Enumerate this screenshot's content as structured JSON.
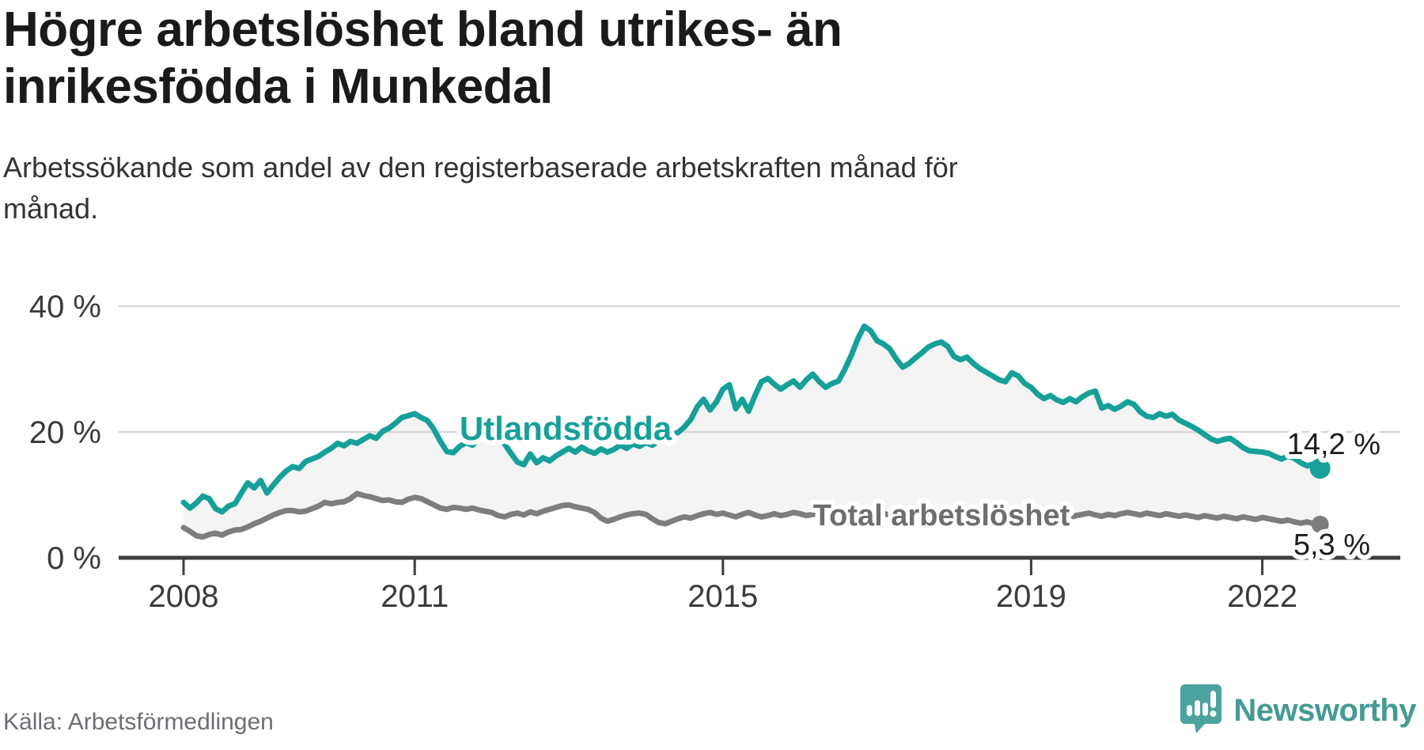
{
  "header": {
    "title": "Högre arbetslöshet bland utrikes- än\ninrikesfödda i Munkedal",
    "subtitle": "Arbetssökande som andel av den registerbaserade arbetskraften månad för\nmånad."
  },
  "footer": {
    "source": "Källa: Arbetsförmedlingen",
    "brand": "Newsworthy",
    "logo_icon": "bar-chart-speech-bubble-icon"
  },
  "colors": {
    "accent_teal": "#16a099",
    "gray_line": "#7d7d7d",
    "gray_label": "#6e6e6e",
    "band_fill": "#f4f4f4",
    "gridline": "#d8d8d8",
    "axis": "#3d3d3d",
    "axis_text": "#3b3b3b",
    "value_text": "#1d1d1d",
    "brand_teal": "#4aa39e"
  },
  "chart_data": {
    "type": "line",
    "title": "Arbetssökande som andel av den registerbaserade arbetskraften månad för månad",
    "frequency": "monthly",
    "x_start": "2008-01",
    "x_end": "2022-10",
    "x_tick_years": [
      2008,
      2011,
      2015,
      2019,
      2022
    ],
    "y_ticks": [
      {
        "value": 0,
        "label": "0 %"
      },
      {
        "value": 20,
        "label": "20 %"
      },
      {
        "value": 40,
        "label": "40 %"
      }
    ],
    "ylim": [
      0,
      42
    ],
    "grid": "horizontal",
    "fill_between_series": true,
    "legend_position": "inline-labels",
    "series": [
      {
        "name": "Utlandsfödda",
        "color": "#16a099",
        "end_label": "14,2 %",
        "end_value": 14.2,
        "values": [
          8.8,
          7.9,
          8.7,
          9.8,
          9.4,
          7.8,
          7.3,
          8.2,
          8.6,
          10.3,
          11.9,
          11.1,
          12.3,
          10.3,
          11.6,
          12.8,
          13.8,
          14.5,
          14.2,
          15.3,
          15.7,
          16.1,
          16.8,
          17.4,
          18.2,
          17.8,
          18.5,
          18.2,
          18.8,
          19.4,
          19.0,
          20.1,
          20.6,
          21.4,
          22.3,
          22.6,
          22.9,
          22.3,
          21.8,
          20.4,
          18.5,
          16.9,
          16.7,
          17.7,
          18.3,
          17.9,
          19.0,
          19.6,
          19.9,
          19.3,
          18.1,
          16.6,
          15.2,
          14.8,
          16.5,
          15.1,
          15.9,
          15.4,
          16.2,
          16.8,
          17.4,
          16.8,
          17.6,
          17.0,
          16.6,
          17.3,
          16.8,
          17.2,
          17.9,
          17.4,
          18.1,
          17.7,
          18.3,
          17.9,
          18.6,
          19.2,
          19.7,
          19.9,
          20.8,
          22.0,
          24.0,
          25.2,
          23.5,
          24.8,
          26.8,
          27.5,
          23.7,
          25.2,
          23.3,
          25.8,
          28.0,
          28.5,
          27.6,
          26.8,
          27.5,
          28.1,
          27.1,
          28.3,
          29.2,
          28.0,
          27.1,
          27.7,
          28.1,
          30.0,
          32.2,
          34.8,
          36.8,
          36.1,
          34.5,
          34.0,
          33.2,
          31.6,
          30.3,
          30.9,
          31.8,
          32.6,
          33.5,
          34.0,
          34.3,
          33.6,
          32.0,
          31.5,
          31.9,
          30.9,
          30.1,
          29.5,
          28.9,
          28.3,
          28.0,
          29.4,
          28.9,
          27.7,
          27.1,
          26.0,
          25.3,
          25.8,
          25.1,
          24.7,
          25.3,
          24.8,
          25.6,
          26.2,
          26.5,
          23.8,
          24.2,
          23.6,
          24.1,
          24.8,
          24.4,
          23.2,
          22.5,
          22.3,
          22.9,
          22.5,
          22.8,
          21.9,
          21.4,
          20.9,
          20.3,
          19.6,
          18.9,
          18.5,
          18.8,
          19.0,
          18.3,
          17.5,
          17.0,
          16.9,
          16.8,
          16.6,
          16.1,
          15.7,
          16.2,
          15.8,
          15.1,
          14.6,
          14.9,
          14.2
        ]
      },
      {
        "name": "Total arbetslöshet",
        "color": "#7d7d7d",
        "end_label": "5,3 %",
        "end_value": 5.3,
        "values": [
          4.8,
          4.2,
          3.5,
          3.3,
          3.7,
          3.9,
          3.6,
          4.1,
          4.4,
          4.5,
          4.9,
          5.4,
          5.8,
          6.3,
          6.8,
          7.2,
          7.5,
          7.5,
          7.3,
          7.4,
          7.8,
          8.2,
          8.8,
          8.6,
          8.8,
          8.9,
          9.4,
          10.2,
          9.9,
          9.7,
          9.4,
          9.1,
          9.2,
          8.9,
          8.8,
          9.3,
          9.6,
          9.4,
          8.9,
          8.4,
          7.9,
          7.7,
          8.0,
          7.9,
          7.7,
          7.9,
          7.6,
          7.4,
          7.2,
          6.7,
          6.5,
          6.9,
          7.1,
          6.8,
          7.3,
          7.0,
          7.4,
          7.7,
          8.0,
          8.3,
          8.4,
          8.1,
          7.9,
          7.7,
          7.2,
          6.3,
          5.8,
          6.1,
          6.5,
          6.8,
          7.0,
          7.1,
          6.9,
          6.2,
          5.6,
          5.4,
          5.8,
          6.2,
          6.5,
          6.3,
          6.7,
          7.0,
          7.2,
          6.9,
          7.1,
          6.8,
          6.5,
          6.9,
          7.2,
          6.8,
          6.5,
          6.7,
          7.0,
          6.7,
          6.9,
          7.2,
          7.0,
          6.7,
          6.9,
          7.2,
          6.8,
          6.6,
          6.9,
          7.1,
          6.8,
          6.6,
          6.9,
          7.1,
          7.3,
          7.0,
          6.8,
          6.6,
          6.9,
          6.7,
          6.5,
          6.8,
          7.0,
          6.8,
          7.1,
          7.3,
          7.4,
          7.1,
          6.9,
          6.7,
          6.5,
          6.8,
          6.6,
          6.9,
          7.1,
          6.9,
          7.2,
          7.0,
          7.2,
          6.9,
          6.7,
          6.5,
          6.8,
          6.6,
          6.4,
          6.7,
          6.9,
          7.1,
          6.8,
          6.6,
          6.9,
          6.7,
          7.0,
          7.2,
          7.0,
          6.8,
          7.1,
          6.9,
          6.7,
          7.0,
          6.8,
          6.6,
          6.8,
          6.6,
          6.4,
          6.7,
          6.5,
          6.3,
          6.6,
          6.4,
          6.2,
          6.5,
          6.3,
          6.1,
          6.4,
          6.2,
          6.0,
          5.8,
          6.0,
          5.7,
          5.5,
          5.7,
          5.4,
          5.3
        ]
      }
    ]
  }
}
